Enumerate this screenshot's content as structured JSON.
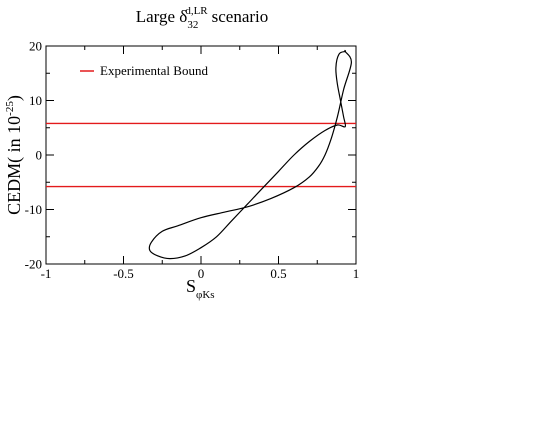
{
  "chart_data": {
    "type": "line",
    "title": {
      "prefix": "Large δ",
      "superscript": "d,LR",
      "subscript": "32",
      "suffix": "scenario"
    },
    "xlabel": {
      "main": "S",
      "subscript": "φKs"
    },
    "ylabel": {
      "main": "CEDM( in 10",
      "superscript": "-25",
      "close": ")"
    },
    "xlim": [
      -1,
      1
    ],
    "ylim": [
      -20,
      20
    ],
    "x_ticks": [
      -1,
      -0.5,
      0,
      0.5,
      1
    ],
    "x_tick_labels": [
      "-1",
      "-0.5",
      "0",
      "0.5",
      "1"
    ],
    "y_ticks": [
      -20,
      -10,
      0,
      10,
      20
    ],
    "y_tick_labels": [
      "-20",
      "-10",
      "0",
      "10",
      "20"
    ],
    "grid": false,
    "legend": {
      "placement": "top-left",
      "entries": [
        {
          "label": "Experimental Bound",
          "color": "#e31a1c"
        }
      ]
    },
    "bounds": [
      5.8,
      -5.8
    ],
    "bound_color": "#e31a1c",
    "curve_color": "#000000",
    "series": [
      {
        "x": [
          0.93,
          0.97,
          0.92,
          0.88,
          0.84,
          0.8,
          0.76,
          0.7,
          0.6,
          0.45,
          0.3,
          0.15,
          0.0,
          -0.15,
          -0.25,
          -0.32,
          -0.33,
          -0.28,
          -0.2,
          -0.1,
          0.0,
          0.1,
          0.2,
          0.3,
          0.4,
          0.5,
          0.6,
          0.7,
          0.8,
          0.88,
          0.93,
          0.92,
          0.9,
          0.88,
          0.87,
          0.89,
          0.93
        ],
        "y": [
          19,
          17,
          12,
          7,
          3,
          0,
          -2,
          -4,
          -6,
          -8,
          -9.5,
          -10.5,
          -11.5,
          -13,
          -14,
          -16,
          -17.5,
          -18.5,
          -19,
          -18.5,
          -17,
          -15,
          -12,
          -9,
          -6,
          -3,
          0,
          2.5,
          4.5,
          5.5,
          5.2,
          7,
          10,
          13,
          16,
          18.5,
          19
        ]
      }
    ]
  }
}
